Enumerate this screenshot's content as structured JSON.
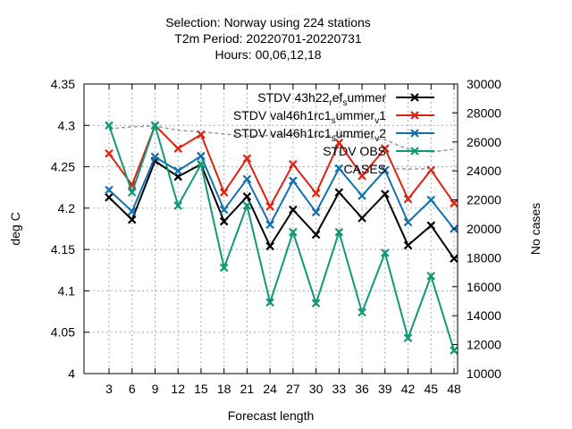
{
  "chart_data": {
    "type": "line",
    "title_lines": [
      "Selection: Norway using   224 stations",
      "T2m   Period: 20220701-20220731",
      "Hours:  00,06,12,18"
    ],
    "xlabel": "Forecast length",
    "ylabel": "deg C",
    "y2label": "No cases",
    "x": [
      3,
      6,
      9,
      12,
      15,
      18,
      21,
      24,
      27,
      30,
      33,
      36,
      39,
      42,
      45,
      48
    ],
    "ylim": [
      4.0,
      4.35
    ],
    "yticks": [
      "4",
      "4.05",
      "4.1",
      "4.15",
      "4.2",
      "4.25",
      "4.3",
      "4.35"
    ],
    "y2lim": [
      10000,
      30000
    ],
    "y2ticks": [
      "10000",
      "12000",
      "14000",
      "16000",
      "18000",
      "20000",
      "22000",
      "24000",
      "26000",
      "28000",
      "30000"
    ],
    "grid": true,
    "legend_position": "top-right",
    "series": [
      {
        "name": "STDV 43h22_ref_summer",
        "legend_parts": [
          [
            "STDV 43h22",
            ""
          ],
          [
            "r",
            "sub"
          ],
          [
            "ef",
            ""
          ],
          [
            "s",
            "sub"
          ],
          [
            "ummer",
            ""
          ]
        ],
        "color": "#000000",
        "axis": "y",
        "values": [
          4.213,
          4.186,
          4.257,
          4.238,
          4.253,
          4.184,
          4.214,
          4.154,
          4.198,
          4.168,
          4.219,
          4.188,
          4.217,
          4.155,
          4.179,
          4.139
        ]
      },
      {
        "name": "STDV val46h1rc1_summer_v1",
        "legend_parts": [
          [
            "STDV val46h1rc1",
            ""
          ],
          [
            "s",
            "sub"
          ],
          [
            "ummer",
            ""
          ],
          [
            "v",
            "sub"
          ],
          [
            "1",
            ""
          ]
        ],
        "color": "#dd2211",
        "axis": "y",
        "values": [
          4.266,
          4.228,
          4.3,
          4.272,
          4.289,
          4.219,
          4.26,
          4.202,
          4.253,
          4.218,
          4.279,
          4.239,
          4.272,
          4.211,
          4.246,
          4.206
        ]
      },
      {
        "name": "STDV val46h1rc1_summer_v2",
        "legend_parts": [
          [
            "STDV val46h1rc1",
            ""
          ],
          [
            "s",
            "sub"
          ],
          [
            "ummer",
            ""
          ],
          [
            "v",
            "sub"
          ],
          [
            "2",
            ""
          ]
        ],
        "color": "#1170b0",
        "axis": "y",
        "values": [
          4.222,
          4.196,
          4.262,
          4.245,
          4.263,
          4.198,
          4.235,
          4.18,
          4.233,
          4.195,
          4.248,
          4.215,
          4.246,
          4.183,
          4.21,
          4.175
        ]
      },
      {
        "name": "STDV OBS",
        "legend_parts": [
          [
            "STDV OBS",
            ""
          ]
        ],
        "color": "#119977",
        "axis": "y",
        "values": [
          4.3,
          4.219,
          4.3,
          4.203,
          4.253,
          4.128,
          4.203,
          4.086,
          4.171,
          4.085,
          4.171,
          4.074,
          4.146,
          4.043,
          4.118,
          4.028
        ]
      },
      {
        "name": "CASES",
        "legend_parts": [
          [
            "CASES",
            ""
          ]
        ],
        "color": "#999999",
        "axis": "y2",
        "dashed": true,
        "values": [
          26900,
          27050,
          27100,
          26800,
          26700,
          26550,
          26400,
          26450,
          26550,
          26400,
          26450,
          26300,
          26150,
          25500,
          25300,
          25500
        ]
      }
    ]
  }
}
